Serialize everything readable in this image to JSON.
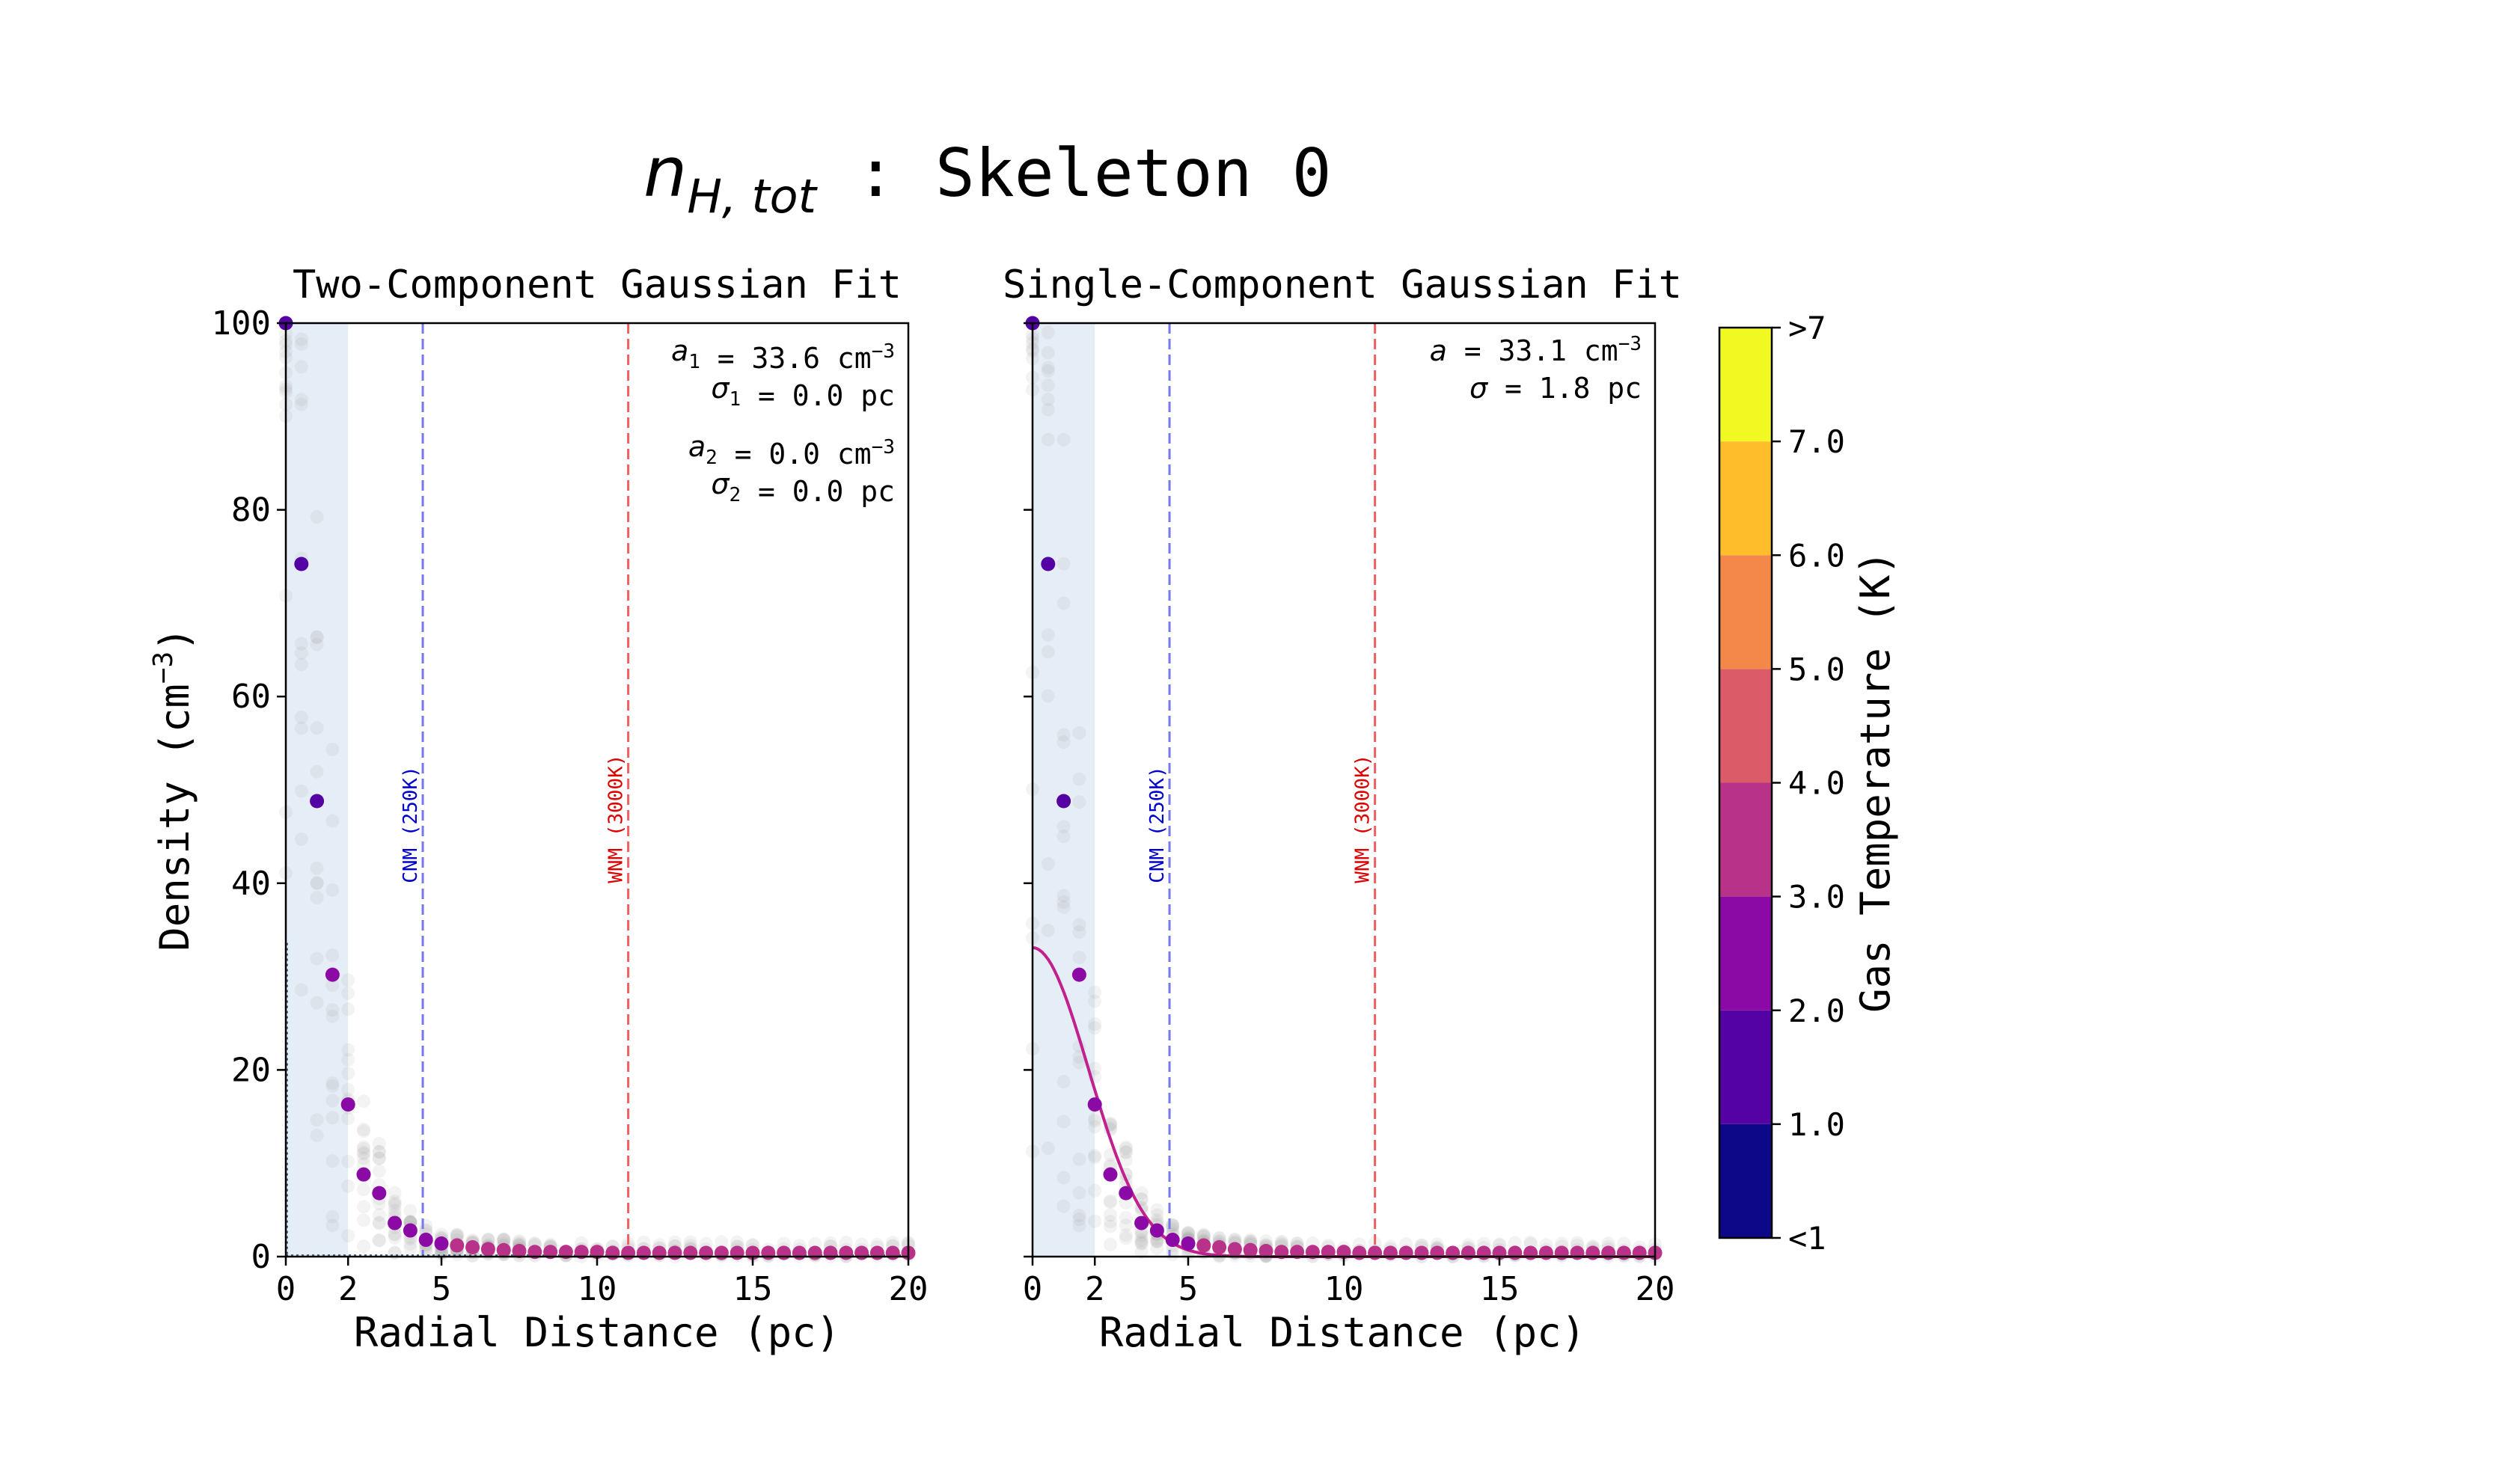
{
  "figure": {
    "title_main": "n",
    "title_sub": "H, tot",
    "title_rest": " : Skeleton 0"
  },
  "colorbar": {
    "label": "Gas Temperature (K)",
    "tick_labels": [
      ">7",
      "7.0",
      "6.0",
      "5.0",
      "4.0",
      "3.0",
      "2.0",
      "1.0",
      "<1"
    ],
    "colors": [
      "#0d0887",
      "#5402a3",
      "#8b0aa5",
      "#b83289",
      "#db5c68",
      "#f48849",
      "#febd2a",
      "#f0f921"
    ]
  },
  "chart_data": [
    {
      "type": "scatter",
      "title": "Two-Component Gaussian Fit",
      "xlabel": "Radial Distance (pc)",
      "ylabel_main": "Density (cm",
      "ylabel_sup": "−3",
      "ylabel_end": ")",
      "xlim": [
        0,
        20
      ],
      "ylim": [
        0,
        100
      ],
      "xticks": [
        0,
        2,
        5,
        10,
        15,
        20
      ],
      "yticks": [
        0,
        20,
        40,
        60,
        80,
        100
      ],
      "shaded_region": [
        0,
        2
      ],
      "vlines": [
        {
          "x": 4.4,
          "label": "CNM (250K)",
          "color": "#0000cc"
        },
        {
          "x": 11.0,
          "label": "WNM (3000K)",
          "color": "#dd0000"
        }
      ],
      "annotations": [
        {
          "sym": "a",
          "sub": "1",
          "rest": " = 33.6 cm",
          "sup": "−3"
        },
        {
          "sym": "σ",
          "sub": "1",
          "rest": " = 0.0 pc",
          "sup": ""
        },
        {
          "sym": "a",
          "sub": "2",
          "rest": " = 0.0 cm",
          "sup": "−3"
        },
        {
          "sym": "σ",
          "sub": "2",
          "rest": " = 0.0 pc",
          "sup": ""
        }
      ],
      "fit_curve": null,
      "mean_profile": {
        "x": [
          0.0,
          0.5,
          1.0,
          1.5,
          2.0,
          2.5,
          3.0,
          3.5,
          4.0,
          4.5,
          5.0,
          5.5,
          6.0,
          6.5,
          7.0,
          7.5,
          8.0,
          8.5,
          9.0,
          9.5,
          10.0,
          10.5,
          11.0,
          11.5,
          12.0,
          12.5,
          13.0,
          13.5,
          14.0,
          14.5,
          15.0,
          15.5,
          16.0,
          16.5,
          17.0,
          17.5,
          18.0,
          18.5,
          19.0,
          19.5,
          20.0
        ],
        "y": [
          100,
          74.2,
          48.8,
          30.2,
          16.3,
          8.8,
          6.8,
          3.6,
          2.8,
          1.8,
          1.4,
          1.2,
          1.0,
          0.8,
          0.7,
          0.6,
          0.5,
          0.5,
          0.5,
          0.5,
          0.5,
          0.4,
          0.4,
          0.4,
          0.4,
          0.4,
          0.4,
          0.4,
          0.4,
          0.4,
          0.4,
          0.4,
          0.4,
          0.4,
          0.4,
          0.4,
          0.4,
          0.4,
          0.4,
          0.4,
          0.4
        ],
        "temperature": [
          1.5,
          1.5,
          1.5,
          2.2,
          2.5,
          2.6,
          2.6,
          2.7,
          2.8,
          2.8,
          2.9,
          3.0,
          3.0,
          3.0,
          3.0,
          3.1,
          3.1,
          3.2,
          3.2,
          3.2,
          3.3,
          3.3,
          3.3,
          3.3,
          3.3,
          3.3,
          3.3,
          3.3,
          3.3,
          3.3,
          3.3,
          3.3,
          3.3,
          3.3,
          3.3,
          3.3,
          3.3,
          3.3,
          3.3,
          3.3,
          3.3
        ]
      }
    },
    {
      "type": "scatter",
      "title": "Single-Component Gaussian Fit",
      "xlabel": "Radial Distance (pc)",
      "xlim": [
        0,
        20
      ],
      "ylim": [
        0,
        100
      ],
      "xticks": [
        0,
        2,
        5,
        10,
        15,
        20
      ],
      "yticks": [
        0,
        20,
        40,
        60,
        80,
        100
      ],
      "shaded_region": [
        0,
        2
      ],
      "vlines": [
        {
          "x": 4.4,
          "label": "CNM (250K)",
          "color": "#0000cc"
        },
        {
          "x": 11.0,
          "label": "WNM (3000K)",
          "color": "#dd0000"
        }
      ],
      "annotations": [
        {
          "sym": "a",
          "sub": "",
          "rest": " = 33.1 cm",
          "sup": "−3"
        },
        {
          "sym": "σ",
          "sub": "",
          "rest": " = 1.8 pc",
          "sup": ""
        }
      ],
      "fit_curve": {
        "amplitude": 33.1,
        "sigma": 1.8,
        "color": "#c21f8f"
      },
      "mean_profile": {
        "x": [
          0.0,
          0.5,
          1.0,
          1.5,
          2.0,
          2.5,
          3.0,
          3.5,
          4.0,
          4.5,
          5.0,
          5.5,
          6.0,
          6.5,
          7.0,
          7.5,
          8.0,
          8.5,
          9.0,
          9.5,
          10.0,
          10.5,
          11.0,
          11.5,
          12.0,
          12.5,
          13.0,
          13.5,
          14.0,
          14.5,
          15.0,
          15.5,
          16.0,
          16.5,
          17.0,
          17.5,
          18.0,
          18.5,
          19.0,
          19.5,
          20.0
        ],
        "y": [
          100,
          74.2,
          48.8,
          30.2,
          16.3,
          8.8,
          6.8,
          3.6,
          2.8,
          1.8,
          1.4,
          1.2,
          1.0,
          0.8,
          0.7,
          0.6,
          0.5,
          0.5,
          0.5,
          0.5,
          0.5,
          0.4,
          0.4,
          0.4,
          0.4,
          0.4,
          0.4,
          0.4,
          0.4,
          0.4,
          0.4,
          0.4,
          0.4,
          0.4,
          0.4,
          0.4,
          0.4,
          0.4,
          0.4,
          0.4,
          0.4
        ],
        "temperature": [
          1.5,
          1.5,
          1.5,
          2.2,
          2.5,
          2.6,
          2.6,
          2.7,
          2.8,
          2.8,
          2.9,
          3.0,
          3.0,
          3.0,
          3.0,
          3.1,
          3.1,
          3.2,
          3.2,
          3.2,
          3.3,
          3.3,
          3.3,
          3.3,
          3.3,
          3.3,
          3.3,
          3.3,
          3.3,
          3.3,
          3.3,
          3.3,
          3.3,
          3.3,
          3.3,
          3.3,
          3.3,
          3.3,
          3.3,
          3.3,
          3.3
        ]
      }
    }
  ]
}
